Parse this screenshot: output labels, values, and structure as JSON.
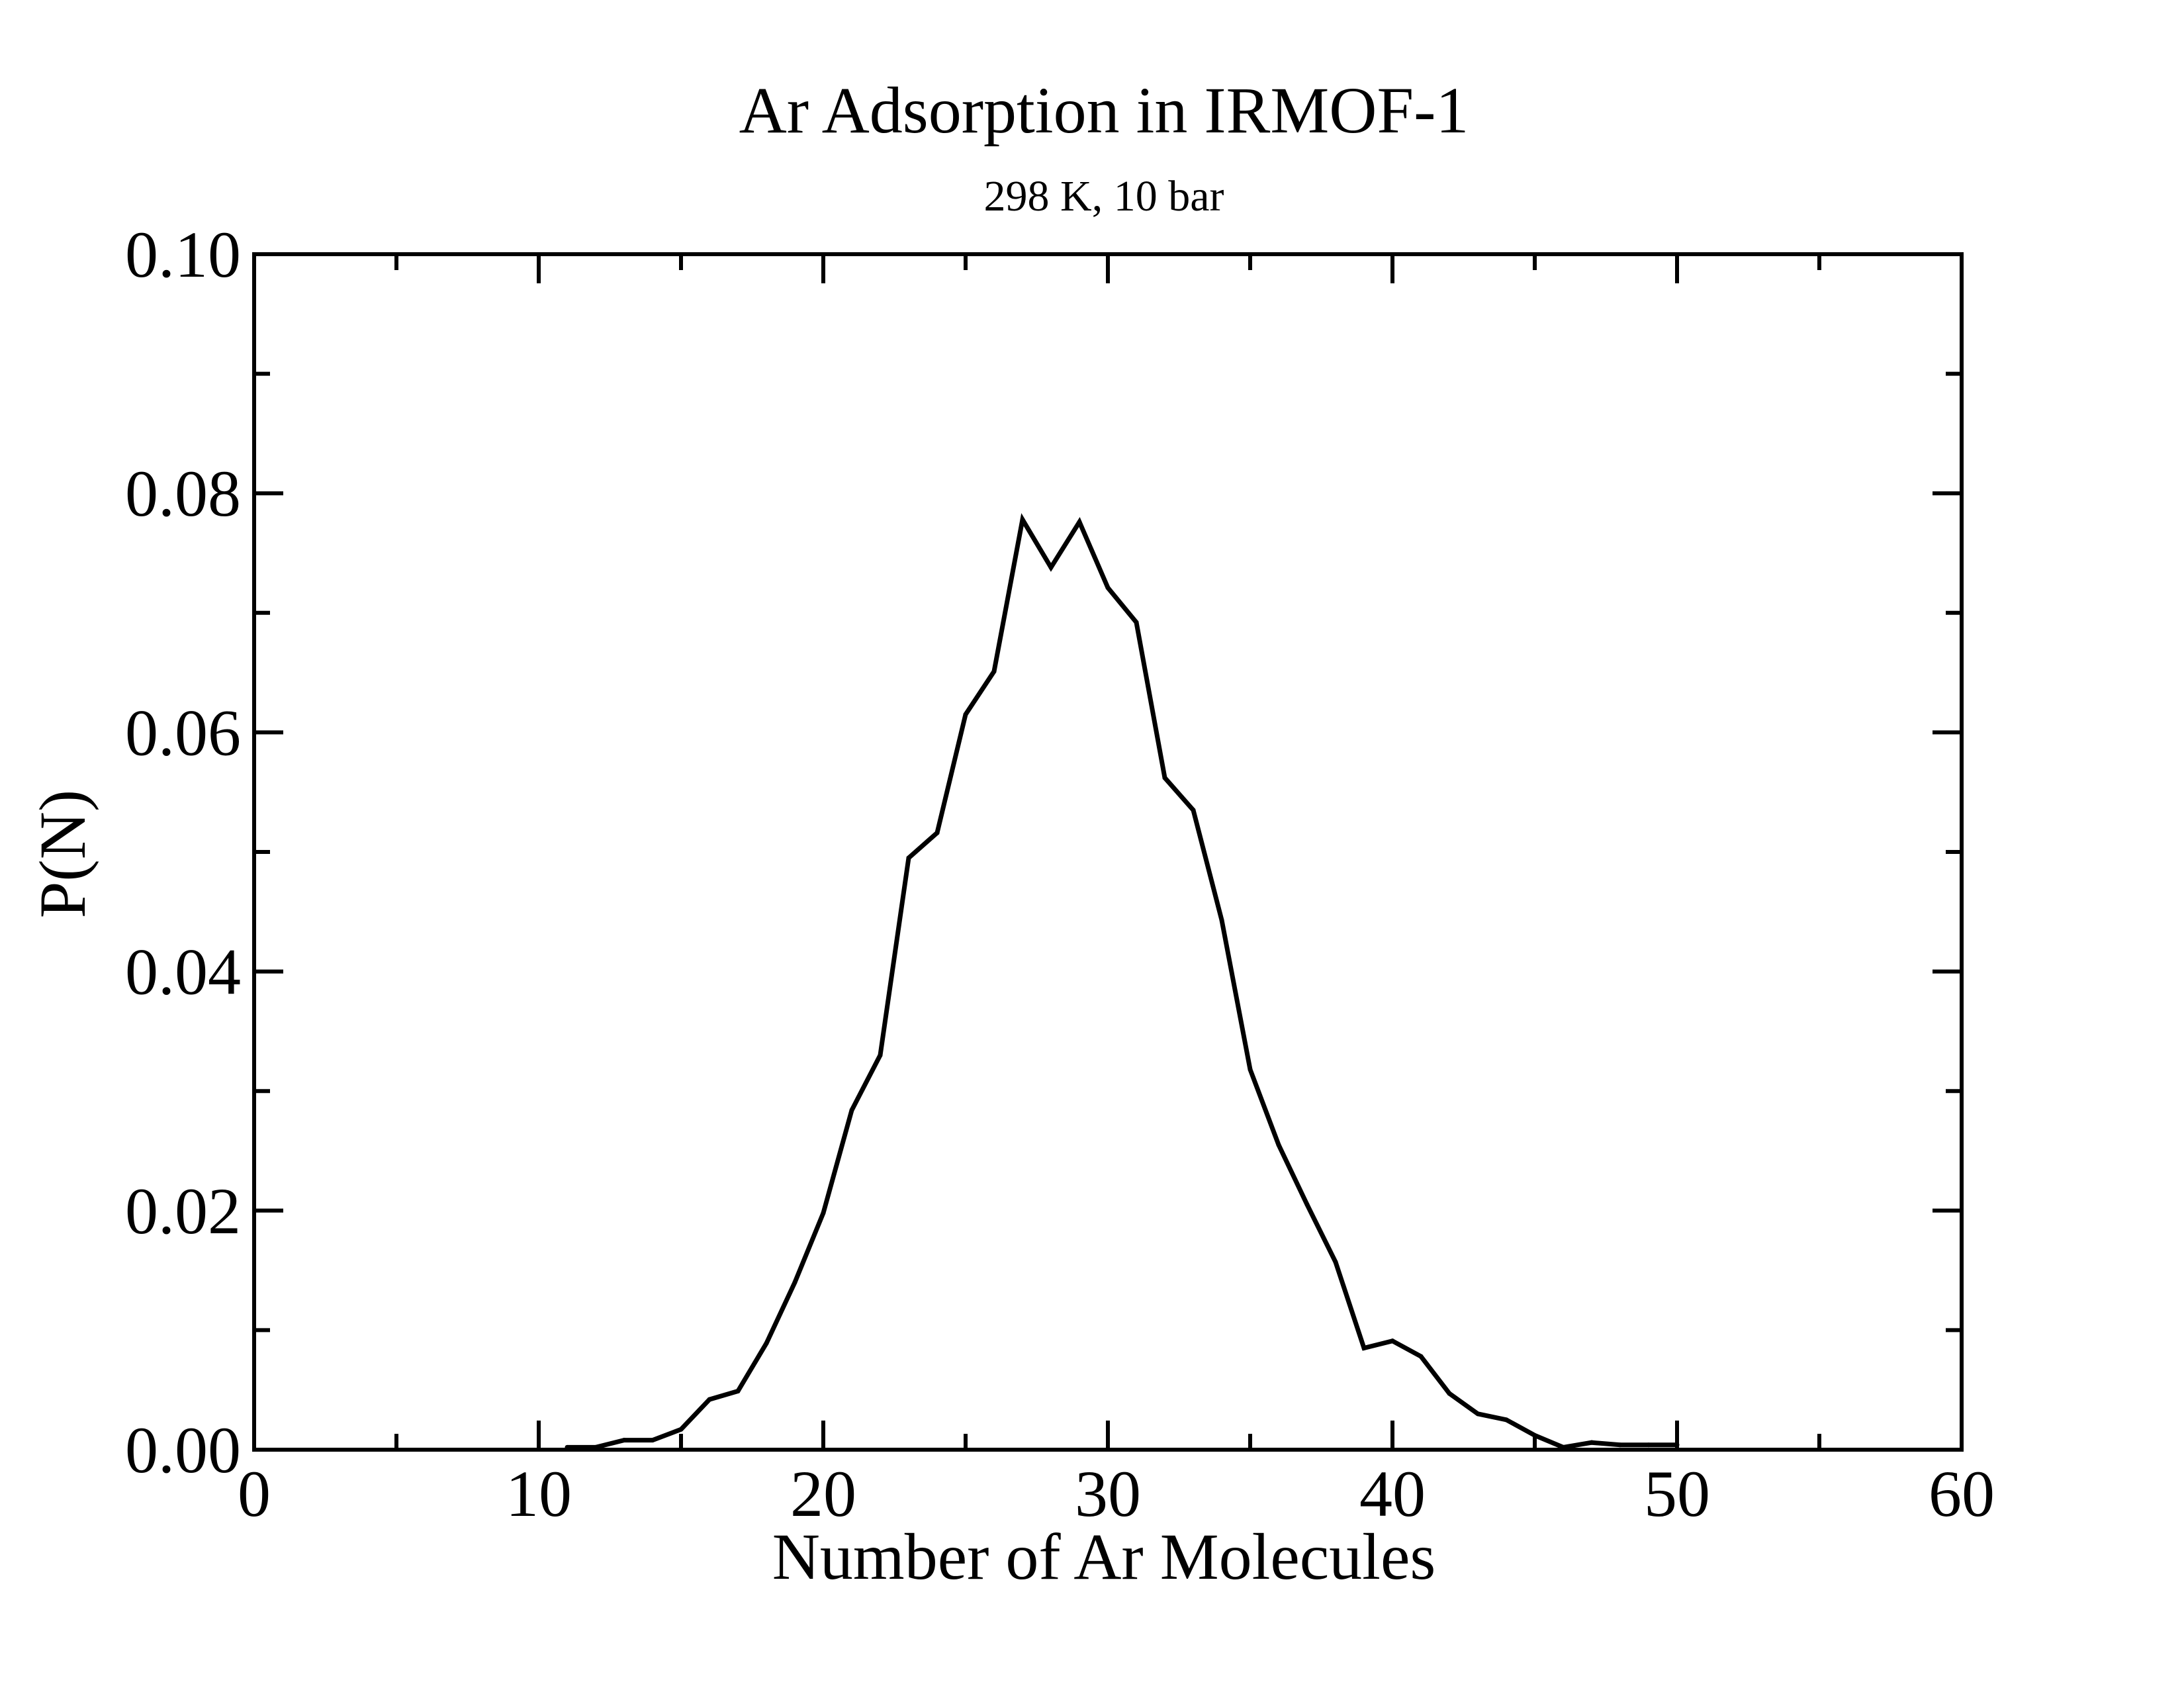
{
  "chart_data": {
    "type": "line",
    "title": "Ar Adsorption in IRMOF-1",
    "subtitle": "298 K, 10 bar",
    "xlabel": "Number of Ar Molecules",
    "ylabel": "P(N)",
    "xlim": [
      0,
      60
    ],
    "ylim": [
      0,
      0.1
    ],
    "x_ticks": [
      0,
      10,
      20,
      30,
      40,
      50,
      60
    ],
    "x_tick_labels": [
      "0",
      "10",
      "20",
      "30",
      "40",
      "50",
      "60"
    ],
    "y_ticks": [
      0,
      0.02,
      0.04,
      0.06,
      0.08,
      0.1
    ],
    "y_tick_labels": [
      "0.00",
      "0.02",
      "0.04",
      "0.06",
      "0.08",
      "0.10"
    ],
    "grid": false,
    "line_color": "#000000",
    "series": [
      {
        "x": [
          11,
          12,
          13,
          14,
          15,
          16,
          17,
          18,
          19,
          20,
          21,
          22,
          23,
          24,
          25,
          26,
          27,
          28,
          29,
          30,
          31,
          32,
          33,
          34,
          35,
          36,
          37,
          38,
          39,
          40,
          41,
          42,
          43,
          44,
          45,
          46,
          47,
          48,
          49,
          50
        ],
        "values": [
          0.0002,
          0.0002,
          0.0008,
          0.0008,
          0.0017,
          0.0042,
          0.0049,
          0.0089,
          0.014,
          0.0198,
          0.0284,
          0.033,
          0.0495,
          0.0516,
          0.0615,
          0.0651,
          0.0778,
          0.0738,
          0.0776,
          0.0721,
          0.0692,
          0.0562,
          0.0535,
          0.0443,
          0.0318,
          0.0255,
          0.0205,
          0.0157,
          0.0085,
          0.0091,
          0.0078,
          0.0047,
          0.003,
          0.0025,
          0.0012,
          0.0002,
          0.0006,
          0.0004,
          0.0004,
          0.0004
        ]
      }
    ]
  }
}
